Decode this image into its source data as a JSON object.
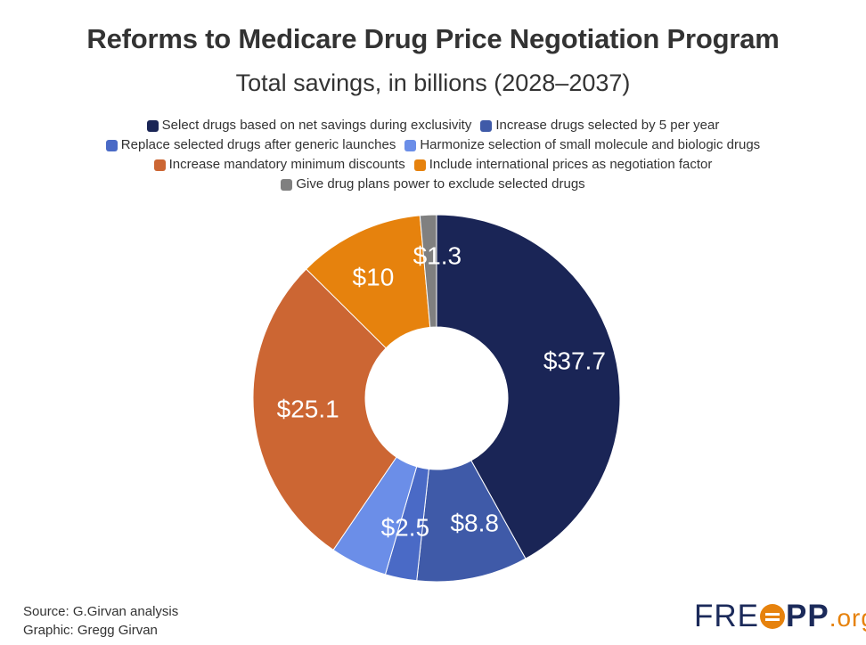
{
  "chart_data": {
    "type": "pie",
    "title": "Reforms to Medicare Drug Price Negotiation Program",
    "subtitle": "Total savings, in billions (2028–2037)",
    "donut": true,
    "legend_position": "top",
    "slices": [
      {
        "name": "Select drugs based on net savings during exclusivity",
        "value": 37.7,
        "label": "$37.7",
        "color": "#1a2556"
      },
      {
        "name": "Increase drugs selected by 5 per year",
        "value": 8.8,
        "label": "$8.8",
        "color": "#3f5aa8"
      },
      {
        "name": "Replace selected drugs after generic launches",
        "value": 2.5,
        "label": "$2.5",
        "color": "#4a6ac6"
      },
      {
        "name": "Harmonize selection of small molecule and biologic drugs",
        "value": 4.5,
        "label": "",
        "color": "#6b8ee8"
      },
      {
        "name": "Increase mandatory minimum discounts",
        "value": 25.1,
        "label": "$25.1",
        "color": "#cc6633"
      },
      {
        "name": "Include international prices as negotiation factor",
        "value": 10,
        "label": "$10",
        "color": "#e6820d"
      },
      {
        "name": "Give drug plans power to exclude selected drugs",
        "value": 1.3,
        "label": "$1.3",
        "color": "#808080"
      }
    ]
  },
  "footer": {
    "source": "Source: G.Girvan analysis",
    "graphic": "Graphic: Gregg Girvan"
  },
  "logo": {
    "text_left": "FRE",
    "text_mid": "PP",
    "text_right": ".org",
    "brand_color": "#1b2a5a",
    "accent_color": "#e6820d"
  }
}
